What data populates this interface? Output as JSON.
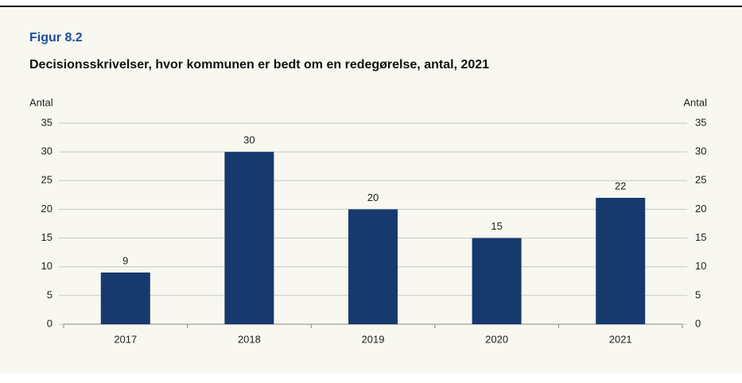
{
  "chart_data": {
    "type": "bar",
    "figure_label": "Figur 8.2",
    "title": "Decisionsskrivelser, hvor kommunen er bedt om en redegørelse, antal, 2021",
    "y_label": "Antal",
    "y2_label": "Antal",
    "categories": [
      "2017",
      "2018",
      "2019",
      "2020",
      "2021"
    ],
    "values": [
      9,
      30,
      20,
      15,
      22
    ],
    "color": "#173a6e",
    "ylim": [
      0,
      35
    ],
    "yticks": [
      0,
      5,
      10,
      15,
      20,
      25,
      30,
      35
    ],
    "y2lim": [
      0,
      35
    ],
    "y2ticks": [
      0,
      5,
      10,
      15,
      20,
      25,
      30,
      35
    ],
    "grid": true
  }
}
